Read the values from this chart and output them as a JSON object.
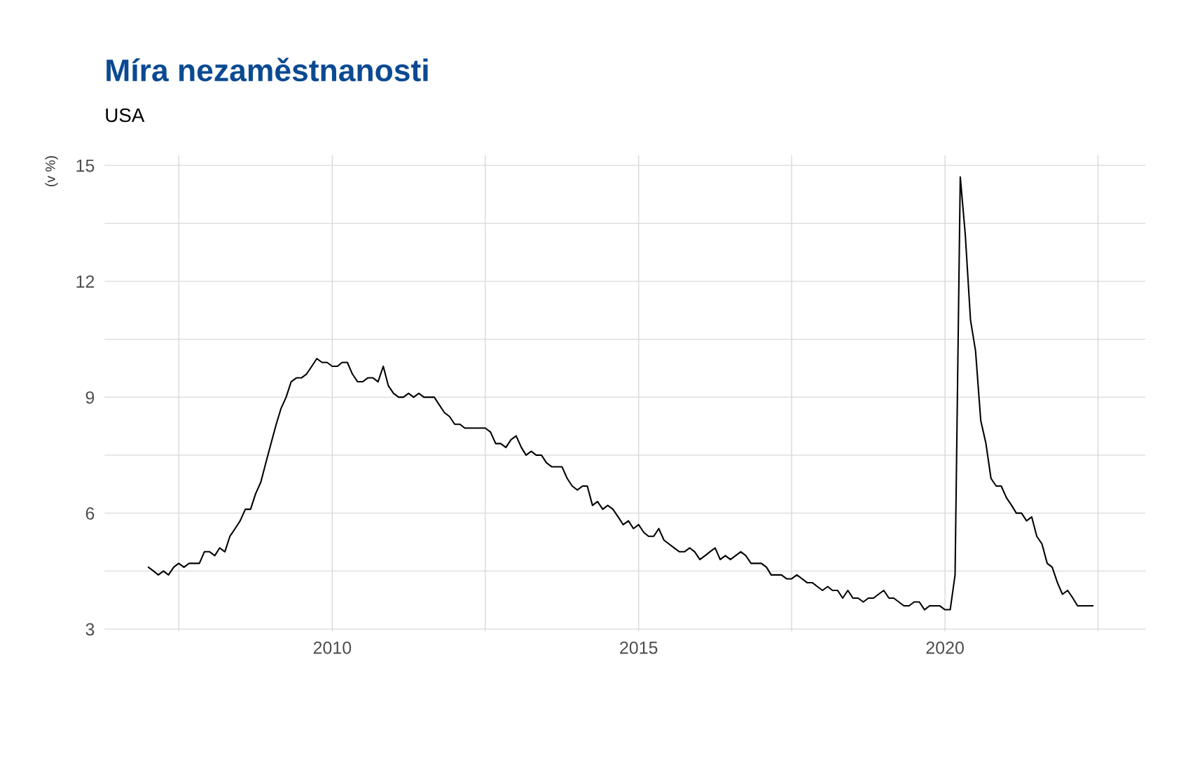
{
  "chart_data": {
    "type": "line",
    "title": "Míra nezaměstnanosti",
    "subtitle": "USA",
    "ylabel": "(v %)",
    "x": [
      "2007-01",
      "2007-02",
      "2007-03",
      "2007-04",
      "2007-05",
      "2007-06",
      "2007-07",
      "2007-08",
      "2007-09",
      "2007-10",
      "2007-11",
      "2007-12",
      "2008-01",
      "2008-02",
      "2008-03",
      "2008-04",
      "2008-05",
      "2008-06",
      "2008-07",
      "2008-08",
      "2008-09",
      "2008-10",
      "2008-11",
      "2008-12",
      "2009-01",
      "2009-02",
      "2009-03",
      "2009-04",
      "2009-05",
      "2009-06",
      "2009-07",
      "2009-08",
      "2009-09",
      "2009-10",
      "2009-11",
      "2009-12",
      "2010-01",
      "2010-02",
      "2010-03",
      "2010-04",
      "2010-05",
      "2010-06",
      "2010-07",
      "2010-08",
      "2010-09",
      "2010-10",
      "2010-11",
      "2010-12",
      "2011-01",
      "2011-02",
      "2011-03",
      "2011-04",
      "2011-05",
      "2011-06",
      "2011-07",
      "2011-08",
      "2011-09",
      "2011-10",
      "2011-11",
      "2011-12",
      "2012-01",
      "2012-02",
      "2012-03",
      "2012-04",
      "2012-05",
      "2012-06",
      "2012-07",
      "2012-08",
      "2012-09",
      "2012-10",
      "2012-11",
      "2012-12",
      "2013-01",
      "2013-02",
      "2013-03",
      "2013-04",
      "2013-05",
      "2013-06",
      "2013-07",
      "2013-08",
      "2013-09",
      "2013-10",
      "2013-11",
      "2013-12",
      "2014-01",
      "2014-02",
      "2014-03",
      "2014-04",
      "2014-05",
      "2014-06",
      "2014-07",
      "2014-08",
      "2014-09",
      "2014-10",
      "2014-11",
      "2014-12",
      "2015-01",
      "2015-02",
      "2015-03",
      "2015-04",
      "2015-05",
      "2015-06",
      "2015-07",
      "2015-08",
      "2015-09",
      "2015-10",
      "2015-11",
      "2015-12",
      "2016-01",
      "2016-02",
      "2016-03",
      "2016-04",
      "2016-05",
      "2016-06",
      "2016-07",
      "2016-08",
      "2016-09",
      "2016-10",
      "2016-11",
      "2016-12",
      "2017-01",
      "2017-02",
      "2017-03",
      "2017-04",
      "2017-05",
      "2017-06",
      "2017-07",
      "2017-08",
      "2017-09",
      "2017-10",
      "2017-11",
      "2017-12",
      "2018-01",
      "2018-02",
      "2018-03",
      "2018-04",
      "2018-05",
      "2018-06",
      "2018-07",
      "2018-08",
      "2018-09",
      "2018-10",
      "2018-11",
      "2018-12",
      "2019-01",
      "2019-02",
      "2019-03",
      "2019-04",
      "2019-05",
      "2019-06",
      "2019-07",
      "2019-08",
      "2019-09",
      "2019-10",
      "2019-11",
      "2019-12",
      "2020-01",
      "2020-02",
      "2020-03",
      "2020-04",
      "2020-05",
      "2020-06",
      "2020-07",
      "2020-08",
      "2020-09",
      "2020-10",
      "2020-11",
      "2020-12",
      "2021-01",
      "2021-02",
      "2021-03",
      "2021-04",
      "2021-05",
      "2021-06",
      "2021-07",
      "2021-08",
      "2021-09",
      "2021-10",
      "2021-11",
      "2021-12",
      "2022-01",
      "2022-02",
      "2022-03",
      "2022-04",
      "2022-05",
      "2022-06"
    ],
    "series": [
      {
        "color": "#000000",
        "values": [
          4.6,
          4.5,
          4.4,
          4.5,
          4.4,
          4.6,
          4.7,
          4.6,
          4.7,
          4.7,
          4.7,
          5.0,
          5.0,
          4.9,
          5.1,
          5.0,
          5.4,
          5.6,
          5.8,
          6.1,
          6.1,
          6.5,
          6.8,
          7.3,
          7.8,
          8.3,
          8.7,
          9.0,
          9.4,
          9.5,
          9.5,
          9.6,
          9.8,
          10.0,
          9.9,
          9.9,
          9.8,
          9.8,
          9.9,
          9.9,
          9.6,
          9.4,
          9.4,
          9.5,
          9.5,
          9.4,
          9.8,
          9.3,
          9.1,
          9.0,
          9.0,
          9.1,
          9.0,
          9.1,
          9.0,
          9.0,
          9.0,
          8.8,
          8.6,
          8.5,
          8.3,
          8.3,
          8.2,
          8.2,
          8.2,
          8.2,
          8.2,
          8.1,
          7.8,
          7.8,
          7.7,
          7.9,
          8.0,
          7.7,
          7.5,
          7.6,
          7.5,
          7.5,
          7.3,
          7.2,
          7.2,
          7.2,
          6.9,
          6.7,
          6.6,
          6.7,
          6.7,
          6.2,
          6.3,
          6.1,
          6.2,
          6.1,
          5.9,
          5.7,
          5.8,
          5.6,
          5.7,
          5.5,
          5.4,
          5.4,
          5.6,
          5.3,
          5.2,
          5.1,
          5.0,
          5.0,
          5.1,
          5.0,
          4.8,
          4.9,
          5.0,
          5.1,
          4.8,
          4.9,
          4.8,
          4.9,
          5.0,
          4.9,
          4.7,
          4.7,
          4.7,
          4.6,
          4.4,
          4.4,
          4.4,
          4.3,
          4.3,
          4.4,
          4.3,
          4.2,
          4.2,
          4.1,
          4.0,
          4.1,
          4.0,
          4.0,
          3.8,
          4.0,
          3.8,
          3.8,
          3.7,
          3.8,
          3.8,
          3.9,
          4.0,
          3.8,
          3.8,
          3.7,
          3.6,
          3.6,
          3.7,
          3.7,
          3.5,
          3.6,
          3.6,
          3.6,
          3.5,
          3.5,
          4.4,
          14.7,
          13.2,
          11.0,
          10.2,
          8.4,
          7.8,
          6.9,
          6.7,
          6.7,
          6.4,
          6.2,
          6.0,
          6.0,
          5.8,
          5.9,
          5.4,
          5.2,
          4.7,
          4.6,
          4.2,
          3.9,
          4.0,
          3.8,
          3.6,
          3.6,
          3.6,
          3.6
        ]
      }
    ],
    "xlim": [
      "2006-04-15",
      "2023-04-10"
    ],
    "ylim": [
      2.94,
      15.26
    ],
    "xticks": [
      {
        "value": "2007-07",
        "label": null
      },
      "2010",
      {
        "value": "2012-07",
        "label": null
      },
      "2015",
      {
        "value": "2017-07",
        "label": null
      },
      "2020",
      {
        "value": "2022-07",
        "label": null
      }
    ],
    "yticks": [
      3,
      {
        "value": 4.5,
        "label": null
      },
      6,
      {
        "value": 7.5,
        "label": null
      },
      9,
      {
        "value": 10.5,
        "label": null
      },
      12,
      {
        "value": 13.5,
        "label": null
      },
      15
    ],
    "grid": true
  }
}
